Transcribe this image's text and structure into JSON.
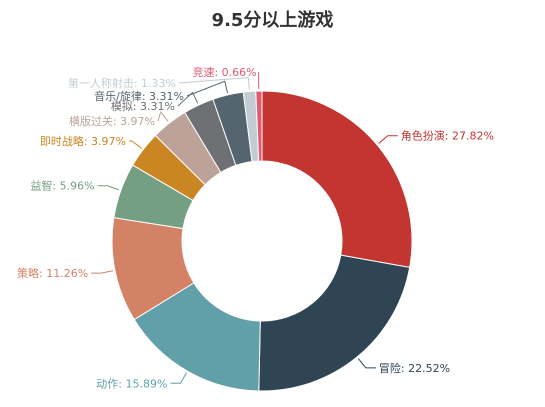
{
  "chart_data": {
    "type": "pie",
    "title": "9.5分以上游戏",
    "categories": [
      "角色扮演",
      "冒险",
      "动作",
      "策略",
      "益智",
      "即时战略",
      "横版过关",
      "模拟",
      "音乐/旋律",
      "第一人称射击",
      "竞速"
    ],
    "values": [
      27.82,
      22.52,
      15.89,
      11.26,
      5.96,
      3.97,
      3.97,
      3.31,
      3.31,
      1.33,
      0.66
    ],
    "labels": [
      "角色扮演: 27.82%",
      "冒险: 22.52%",
      "动作: 15.89%",
      "策略: 11.26%",
      "益智: 5.96%",
      "即时战略: 3.97%",
      "横版过关: 3.97%",
      "模拟: 3.31%",
      "音乐/旋律: 3.31%",
      "第一人称射击: 1.33%",
      "竞速: 0.66%"
    ],
    "colors": [
      "#c23531",
      "#2f4554",
      "#61a0a8",
      "#d48265",
      "#749f83",
      "#ca8622",
      "#bda29a",
      "#6e7074",
      "#546570",
      "#c4ccd3",
      "#e05a70"
    ],
    "donut": true,
    "legend": "none"
  }
}
